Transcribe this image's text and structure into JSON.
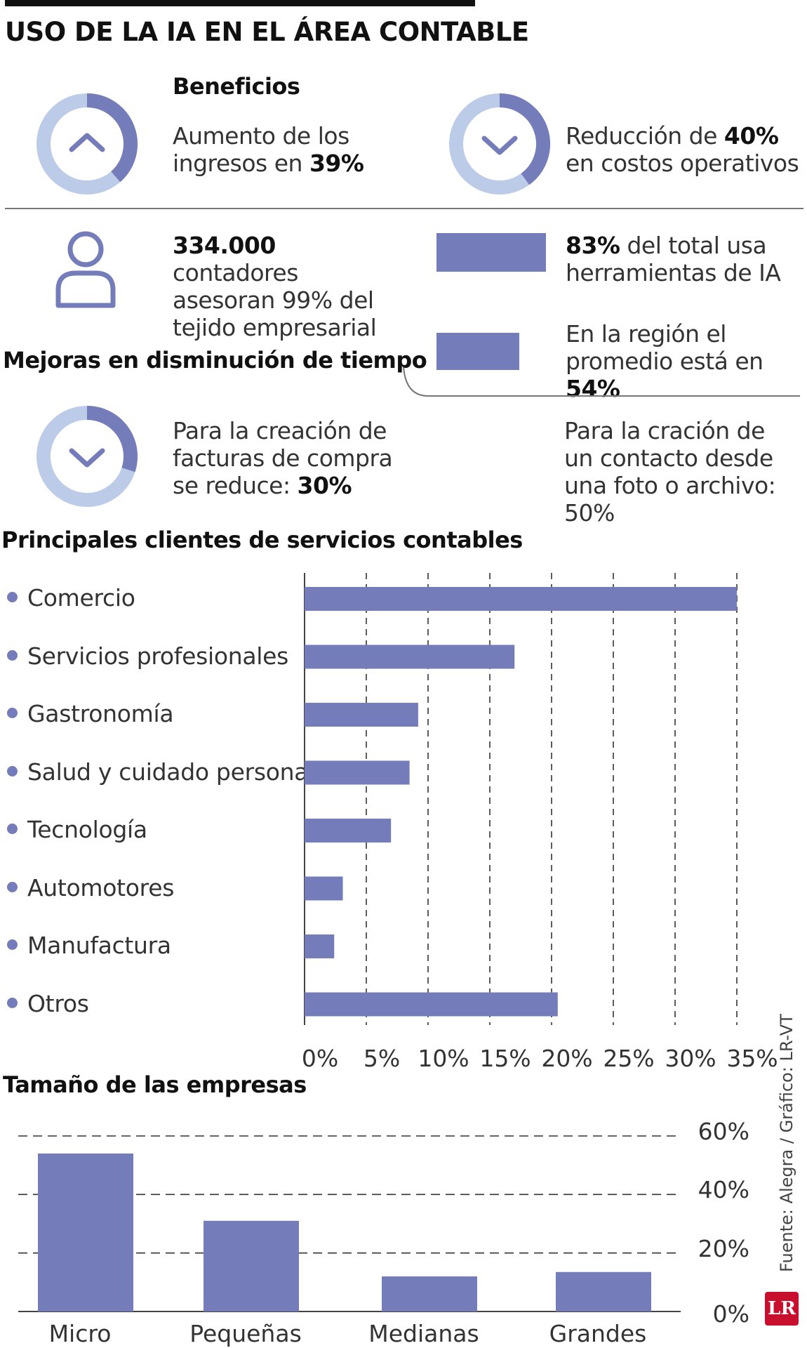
{
  "header": {
    "title": "USO DE LA IA EN EL ÁREA CONTABLE"
  },
  "benefits": {
    "heading": "Beneficios",
    "income": {
      "prefix": "Aumento de los ingresos en ",
      "value": "39%",
      "icon": "chevron-up-icon"
    },
    "costs": {
      "prefix": "Reducción de ",
      "value": "40%",
      "suffix": " en costos operativos",
      "icon": "chevron-down-icon"
    }
  },
  "accountants": {
    "value": "334.000",
    "text": " contadores asesoran 99% del tejido empresarial",
    "icon": "person-icon"
  },
  "usage": {
    "total": {
      "value": "83%",
      "text": " del total usa herramientas de IA",
      "share": 83
    },
    "region": {
      "prefix": "En la región el promedio está en ",
      "value": "54%",
      "share": 54
    }
  },
  "time": {
    "heading": "Mejoras en disminución de tiempo",
    "invoices": {
      "prefix": "Para la creación de facturas de compra se reduce: ",
      "value": "30%",
      "icon": "chevron-down-icon"
    },
    "contact": {
      "text": "Para la cración de un contacto desde una foto o archivo: 50%"
    }
  },
  "colors": {
    "accent": "#757cba",
    "ring_light": "#bccbe8",
    "ring_dark": "#757cba"
  },
  "clients_chart_title": "Principales clientes de servicios contables",
  "size_chart_title": "Tamaño de las empresas",
  "source": "Fuente: Alegra / Gráfico: LR-VT",
  "logo": "LR",
  "chart_data": [
    {
      "type": "bar",
      "orientation": "horizontal",
      "title": "Principales clientes de servicios contables",
      "categories": [
        "Comercio",
        "Servicios profesionales",
        "Gastronomía",
        "Salud y cuidado personal",
        "Tecnología",
        "Automotores",
        "Manufactura",
        "Otros"
      ],
      "values": [
        35,
        17,
        9.2,
        8.5,
        7,
        3.1,
        2.4,
        20.5
      ],
      "xlim": [
        0,
        35
      ],
      "xticks": [
        "0%",
        "5%",
        "10%",
        "15%",
        "20%",
        "25%",
        "30%",
        "35%"
      ],
      "grid": true
    },
    {
      "type": "bar",
      "orientation": "vertical",
      "title": "Tamaño de las empresas",
      "categories": [
        "Micro",
        "Pequeñas",
        "Medianas",
        "Grandes"
      ],
      "values": [
        54,
        31,
        12,
        13.5
      ],
      "ylim": [
        0,
        60
      ],
      "yticks": [
        "0%",
        "20%",
        "40%",
        "60%"
      ],
      "grid": true
    }
  ]
}
